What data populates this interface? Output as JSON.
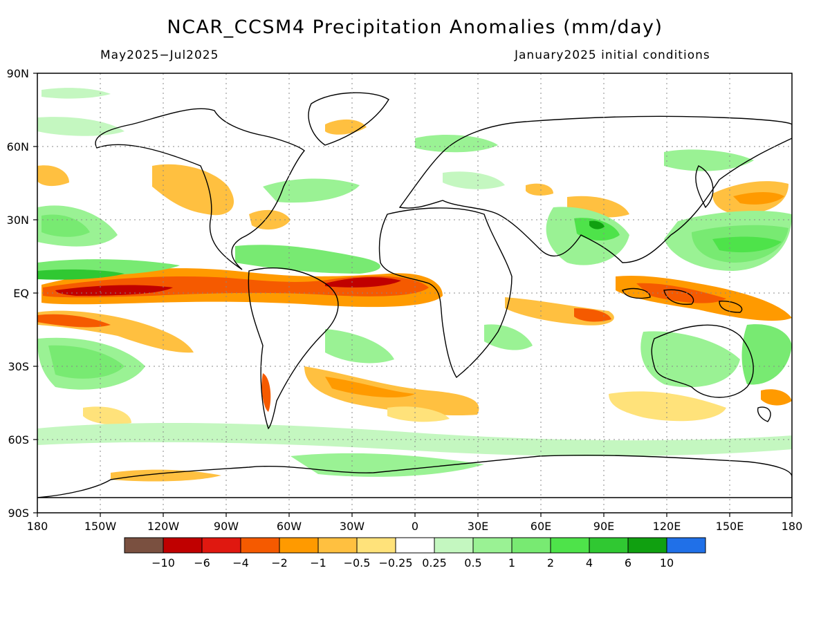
{
  "title": "NCAR_CCSM4 Precipitation Anomalies (mm/day)",
  "subtitle_left": "May2025−Jul2025",
  "subtitle_right": "January2025 initial conditions",
  "lat_labels": [
    "90N",
    "60N",
    "30N",
    "EQ",
    "30S",
    "60S",
    "90S"
  ],
  "lon_labels": [
    "180",
    "150W",
    "120W",
    "90W",
    "60W",
    "30W",
    "0",
    "30E",
    "60E",
    "90E",
    "120E",
    "150E",
    "180"
  ],
  "colorbar": {
    "colors": [
      "#7a5040",
      "#c00000",
      "#e01810",
      "#f55a00",
      "#ff9a00",
      "#ffc040",
      "#ffe27a",
      "#ffffff",
      "#c4f7c0",
      "#9af294",
      "#78ea72",
      "#4ee34a",
      "#30c832",
      "#10a010",
      "#2070e8"
    ],
    "labels": [
      "−10",
      "−6",
      "−4",
      "−2",
      "−1",
      "−0.5",
      "−0.25",
      "0.25",
      "0.5",
      "1",
      "2",
      "4",
      "6",
      "10"
    ]
  }
}
